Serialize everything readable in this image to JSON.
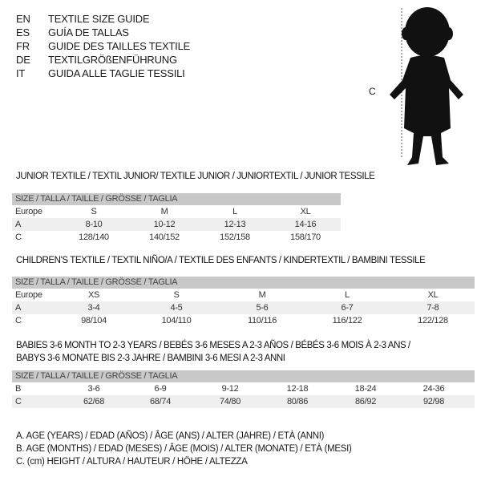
{
  "languages": [
    {
      "code": "EN",
      "text": "TEXTILE SIZE GUIDE"
    },
    {
      "code": "ES",
      "text": "GUÍA DE TALLAS"
    },
    {
      "code": "FR",
      "text": "GUIDE DES TAILLES TEXTILE"
    },
    {
      "code": "DE",
      "text": "TEXTILGRÖßENFÜHRUNG"
    },
    {
      "code": "IT",
      "text": "GUIDA ALLE TAGLIE TESSILI"
    }
  ],
  "figure": {
    "measure_label": "C"
  },
  "tables": [
    {
      "title": "JUNIOR TEXTILE / TEXTIL JUNIOR/ TEXTILE JUNIOR / JUNIORTEXTIL / JUNIOR TESSILE",
      "header": "SIZE / TALLA / TAILLE / GRÖSSE / TAGLIA",
      "rows": [
        {
          "label": "Europe",
          "cells": [
            "S",
            "M",
            "L",
            "XL"
          ]
        },
        {
          "label": "A",
          "cells": [
            "8-10",
            "10-12",
            "12-13",
            "14-16"
          ]
        },
        {
          "label": "C",
          "cells": [
            "128/140",
            "140/152",
            "152/158",
            "158/170"
          ]
        }
      ]
    },
    {
      "title": "CHILDREN'S TEXTILE / TEXTIL NIÑO/A / TEXTILE DES ENFANTS / KINDERTEXTIL / BAMBINI TESSILE",
      "header": "SIZE / TALLA / TAILLE / GRÖSSE / TAGLIA",
      "rows": [
        {
          "label": "Europe",
          "cells": [
            "XS",
            "S",
            "M",
            "L",
            "XL"
          ]
        },
        {
          "label": "A",
          "cells": [
            "3-4",
            "4-5",
            "5-6",
            "6-7",
            "7-8"
          ]
        },
        {
          "label": "C",
          "cells": [
            "98/104",
            "104/110",
            "110/116",
            "116/122",
            "122/128"
          ]
        }
      ]
    },
    {
      "title": "BABIES 3-6 MONTH TO 2-3 YEARS / BEBÉS 3-6 MESES A 2-3 AÑOS / BÉBÉS 3-6 MOIS À 2-3 ANS /",
      "title2": "BABYS 3-6 MONATE BIS 2-3 JAHRE / BAMBINI 3-6 MESI A 2-3 ANNI",
      "header": "SIZE / TALLA / TAILLE / GRÖSSE / TAGLIA",
      "rows": [
        {
          "label": "B",
          "cells": [
            "3-6",
            "6-9",
            "9-12",
            "12-18",
            "18-24",
            "24-36"
          ]
        },
        {
          "label": "C",
          "cells": [
            "62/68",
            "68/74",
            "74/80",
            "80/86",
            "86/92",
            "92/98"
          ]
        }
      ]
    }
  ],
  "legend": [
    "A. AGE (YEARS) / EDAD (AÑOS) / ÂGE (ANS) / ALTER (JAHRE) / ETÀ (ANNI)",
    "B. AGE (MONTHS) / EDAD (MESES) / ÂGE (MOIS) / ALTER (MONATE) / ETÀ (MESI)",
    "C. (cm) HEIGHT / ALTURA / HAUTEUR / HÖHE / ALTEZZA"
  ]
}
